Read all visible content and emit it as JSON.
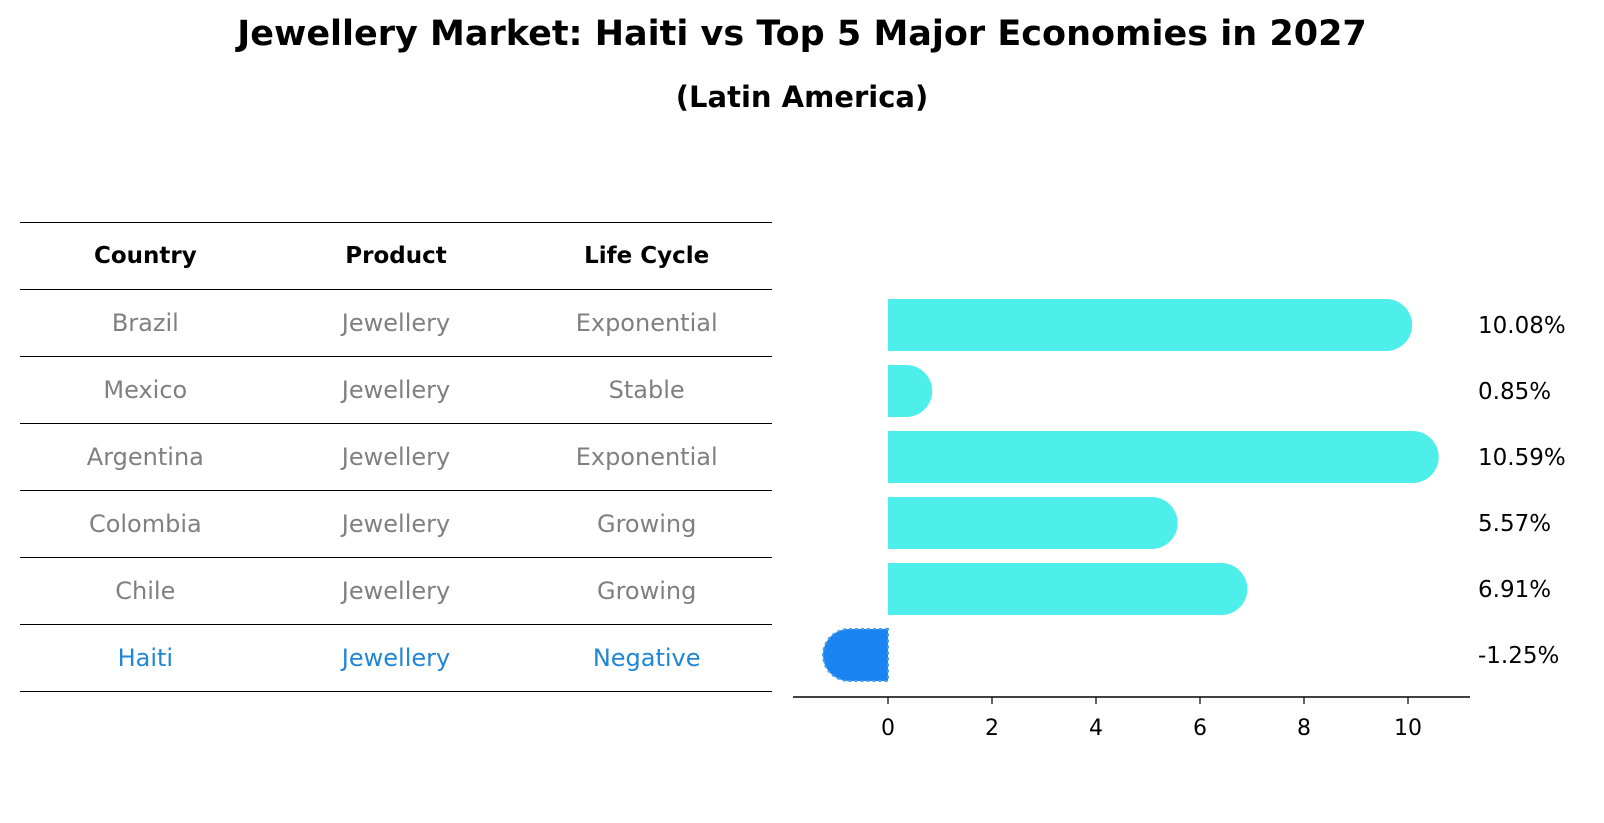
{
  "title": "Jewellery Market: Haiti vs Top 5 Major Economies in 2027",
  "subtitle": "(Latin America)",
  "table": {
    "headers": [
      "Country",
      "Product",
      "Life Cycle"
    ],
    "rows": [
      [
        "Brazil",
        "Jewellery",
        "Exponential"
      ],
      [
        "Mexico",
        "Jewellery",
        "Stable"
      ],
      [
        "Argentina",
        "Jewellery",
        "Exponential"
      ],
      [
        "Colombia",
        "Jewellery",
        "Growing"
      ],
      [
        "Chile",
        "Jewellery",
        "Growing"
      ],
      [
        "Haiti",
        "Jewellery",
        "Negative"
      ]
    ]
  },
  "colors": {
    "bar": "#4eeeea",
    "highlight": "#1a84f2",
    "highlight_text": "#1f86d8"
  },
  "chart_data": {
    "type": "bar",
    "orientation": "horizontal",
    "title": "Jewellery Market: Haiti vs Top 5 Major Economies in 2027",
    "subtitle": "(Latin America)",
    "categories": [
      "Brazil",
      "Mexico",
      "Argentina",
      "Colombia",
      "Chile",
      "Haiti"
    ],
    "values": [
      10.08,
      0.85,
      10.59,
      5.57,
      6.91,
      -1.25
    ],
    "value_labels": [
      "10.08%",
      "0.85%",
      "10.59%",
      "5.57%",
      "6.91%",
      "-1.25%"
    ],
    "highlight": "Haiti",
    "xticks": [
      0,
      2,
      4,
      6,
      8,
      10
    ],
    "xlim": [
      -1.85,
      11.2
    ],
    "xlabel": "",
    "ylabel": "",
    "grid": false,
    "legend": "none"
  }
}
